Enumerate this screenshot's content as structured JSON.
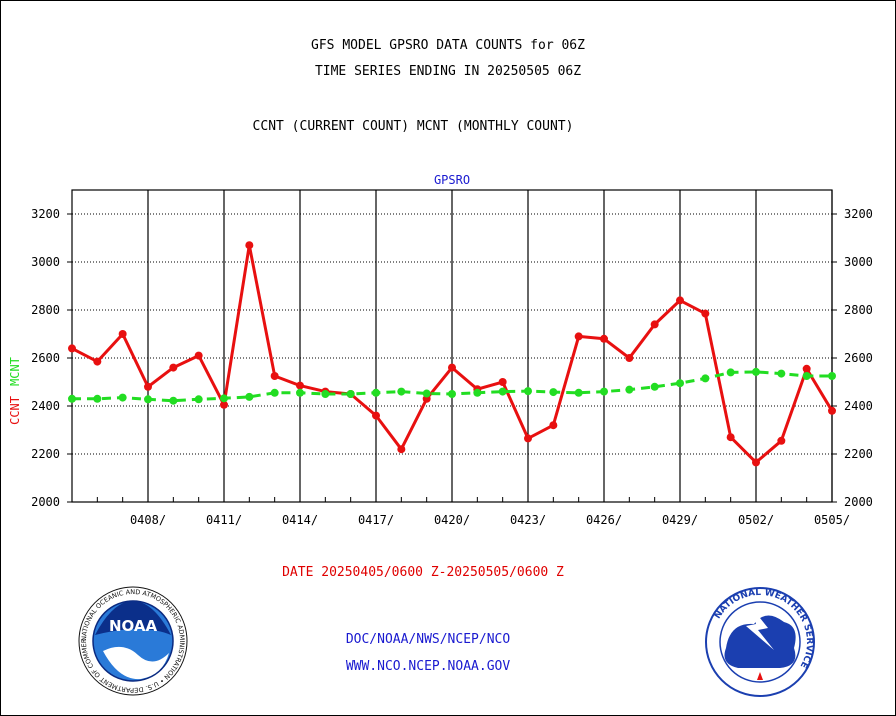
{
  "titles": {
    "line1": "GFS MODEL GPSRO DATA COUNTS for 06Z",
    "line2": "TIME SERIES ENDING IN 20250505 06Z",
    "line3": "CCNT (CURRENT COUNT) MCNT (MONTHLY COUNT)"
  },
  "footer": {
    "date_range": "DATE 20250405/0600 Z-20250505/0600 Z",
    "link1": "DOC/NOAA/NWS/NCEP/NCO",
    "link2": "WWW.NCO.NCEP.NOAA.GOV"
  },
  "logos": {
    "noaa": "NOAA",
    "noaa_ring": "NATIONAL OCEANIC AND ATMOSPHERIC ADMINISTRATION • U.S. DEPARTMENT OF COMMERCE",
    "nws_ring": "NATIONAL WEATHER SERVICE"
  },
  "colors": {
    "ccnt": "#e81010",
    "mcnt": "#22dd22",
    "panel_title": "#1a1ad0",
    "grid": "#000000"
  },
  "chart_data": {
    "type": "line",
    "title": "GPSRO",
    "ylabel_parts": [
      {
        "text": "CCNT",
        "color": "#e81010"
      },
      {
        "text": "MCNT",
        "color": "#22dd22"
      }
    ],
    "ylim": [
      2000,
      3300
    ],
    "yticks": [
      2000,
      2200,
      2400,
      2600,
      2800,
      3000,
      3200
    ],
    "xlim": [
      0,
      30
    ],
    "xticks": [
      {
        "x": 3,
        "label": "0408/"
      },
      {
        "x": 6,
        "label": "0411/"
      },
      {
        "x": 9,
        "label": "0414/"
      },
      {
        "x": 12,
        "label": "0417/"
      },
      {
        "x": 15,
        "label": "0420/"
      },
      {
        "x": 18,
        "label": "0423/"
      },
      {
        "x": 21,
        "label": "0426/"
      },
      {
        "x": 24,
        "label": "0429/"
      },
      {
        "x": 27,
        "label": "0502/"
      },
      {
        "x": 30,
        "label": "0505/"
      }
    ],
    "x": [
      0,
      1,
      2,
      3,
      4,
      5,
      6,
      7,
      8,
      9,
      10,
      11,
      12,
      13,
      14,
      15,
      16,
      17,
      18,
      19,
      20,
      21,
      22,
      23,
      24,
      25,
      26,
      27,
      28,
      29,
      30
    ],
    "series": [
      {
        "name": "CCNT",
        "style": "solid",
        "values": [
          2640,
          2585,
          2700,
          2480,
          2560,
          2610,
          2405,
          3070,
          2525,
          2485,
          2460,
          2450,
          2360,
          2220,
          2430,
          2560,
          2470,
          2500,
          2265,
          2320,
          2690,
          2680,
          2600,
          2740,
          2840,
          2785,
          2270,
          2165,
          2255,
          2555,
          2380
        ]
      },
      {
        "name": "MCNT",
        "style": "dashed",
        "values": [
          2430,
          2430,
          2435,
          2428,
          2422,
          2428,
          2432,
          2438,
          2455,
          2455,
          2450,
          2450,
          2455,
          2460,
          2452,
          2450,
          2455,
          2460,
          2462,
          2458,
          2455,
          2460,
          2468,
          2480,
          2495,
          2515,
          2540,
          2542,
          2535,
          2525,
          2525
        ]
      }
    ]
  }
}
